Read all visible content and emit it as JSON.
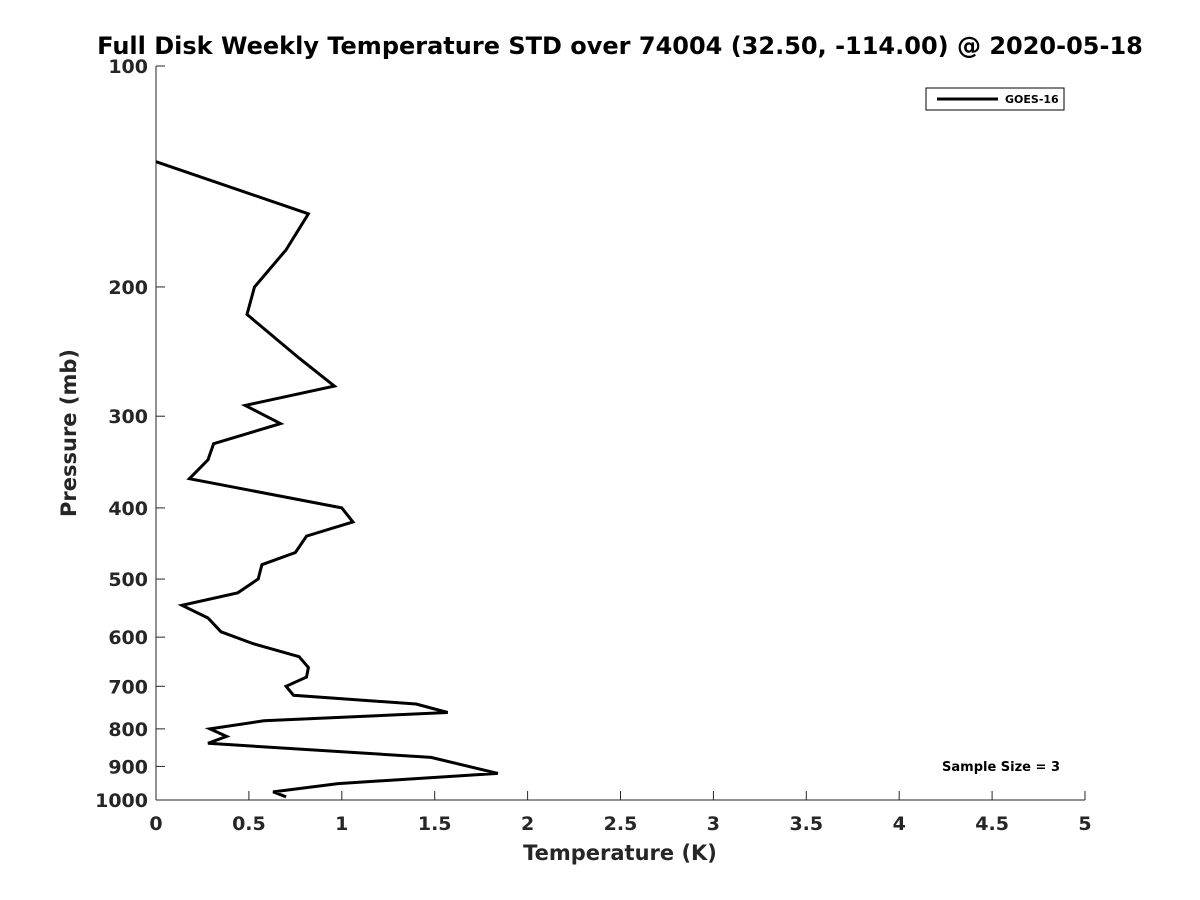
{
  "chart_data": {
    "type": "line",
    "title": "Full Disk Weekly Temperature STD over 74004 (32.50, -114.00) @ 2020-05-18",
    "xlabel": "Temperature (K)",
    "ylabel": "Pressure (mb)",
    "xlim": [
      0,
      5
    ],
    "ylim": [
      100,
      1000
    ],
    "y_scale": "log",
    "y_reversed": true,
    "grid": false,
    "legend_placement": "top-right",
    "x_ticks": [
      "0",
      "0.5",
      "1",
      "1.5",
      "2",
      "2.5",
      "3",
      "3.5",
      "4",
      "4.5",
      "5"
    ],
    "y_ticks": [
      "100",
      "200",
      "300",
      "400",
      "500",
      "600",
      "700",
      "800",
      "900",
      "1000"
    ],
    "series": [
      {
        "name": "GOES-16",
        "color": "#000000",
        "points": [
          [
            0.0,
            135
          ],
          [
            0.82,
            159
          ],
          [
            0.7,
            178
          ],
          [
            0.53,
            200
          ],
          [
            0.49,
            218
          ],
          [
            0.77,
            250
          ],
          [
            0.96,
            273
          ],
          [
            0.48,
            290
          ],
          [
            0.67,
            307
          ],
          [
            0.31,
            327
          ],
          [
            0.28,
            344
          ],
          [
            0.18,
            365
          ],
          [
            1.0,
            400
          ],
          [
            1.06,
            418
          ],
          [
            0.81,
            437
          ],
          [
            0.75,
            460
          ],
          [
            0.57,
            478
          ],
          [
            0.55,
            500
          ],
          [
            0.44,
            522
          ],
          [
            0.14,
            543
          ],
          [
            0.28,
            565
          ],
          [
            0.35,
            590
          ],
          [
            0.52,
            612
          ],
          [
            0.77,
            638
          ],
          [
            0.82,
            660
          ],
          [
            0.81,
            680
          ],
          [
            0.7,
            700
          ],
          [
            0.74,
            720
          ],
          [
            1.4,
            740
          ],
          [
            1.57,
            760
          ],
          [
            0.58,
            780
          ],
          [
            0.29,
            800
          ],
          [
            0.38,
            819
          ],
          [
            0.28,
            837
          ],
          [
            1.48,
            875
          ],
          [
            1.84,
            920
          ],
          [
            0.98,
            950
          ],
          [
            0.63,
            975
          ],
          [
            0.7,
            990
          ]
        ]
      }
    ],
    "annotations": [
      "Sample Size = 3"
    ]
  }
}
